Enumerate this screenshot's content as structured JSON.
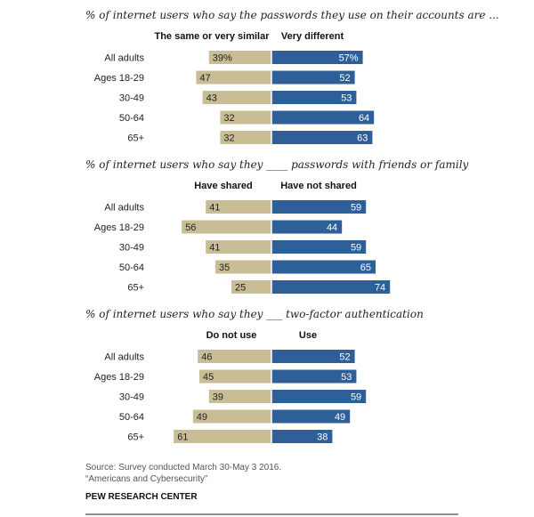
{
  "colors": {
    "left_bar": "#c9bd96",
    "right_bar": "#2f5f98",
    "axis_line": "#ffffff"
  },
  "chart_data": [
    {
      "type": "bar",
      "orientation": "diverging-horizontal",
      "title": "% of internet users who say the passwords they use on their accounts are ...",
      "left_label": "The same or very similar",
      "right_label": "Very different",
      "categories": [
        "All adults",
        "Ages 18-29",
        "30-49",
        "50-64",
        "65+"
      ],
      "series": [
        {
          "name": "The same or very similar",
          "values": [
            39,
            47,
            43,
            32,
            32
          ],
          "labels": [
            "39%",
            "47",
            "43",
            "32",
            "32"
          ]
        },
        {
          "name": "Very different",
          "values": [
            57,
            52,
            53,
            64,
            63
          ],
          "labels": [
            "57%",
            "52",
            "53",
            "64",
            "63"
          ]
        }
      ]
    },
    {
      "type": "bar",
      "orientation": "diverging-horizontal",
      "title": "% of internet users who say they ____ passwords with friends or family",
      "left_label": "Have shared",
      "right_label": "Have not shared",
      "categories": [
        "All adults",
        "Ages 18-29",
        "30-49",
        "50-64",
        "65+"
      ],
      "series": [
        {
          "name": "Have shared",
          "values": [
            41,
            56,
            41,
            35,
            25
          ],
          "labels": [
            "41",
            "56",
            "41",
            "35",
            "25"
          ]
        },
        {
          "name": "Have not shared",
          "values": [
            59,
            44,
            59,
            65,
            74
          ],
          "labels": [
            "59",
            "44",
            "59",
            "65",
            "74"
          ]
        }
      ]
    },
    {
      "type": "bar",
      "orientation": "diverging-horizontal",
      "title": "% of internet users who say they ___ two-factor authentication",
      "left_label": "Do not use",
      "right_label": "Use",
      "categories": [
        "All adults",
        "Ages 18-29",
        "30-49",
        "50-64",
        "65+"
      ],
      "series": [
        {
          "name": "Do not use",
          "values": [
            46,
            45,
            39,
            49,
            61
          ],
          "labels": [
            "46",
            "45",
            "39",
            "49",
            "61"
          ]
        },
        {
          "name": "Use",
          "values": [
            52,
            53,
            59,
            49,
            38
          ],
          "labels": [
            "52",
            "53",
            "59",
            "49",
            "38"
          ]
        }
      ]
    }
  ],
  "footer": {
    "source_line1": "Source: Survey conducted March 30-May 3 2016.",
    "source_line2": "“Americans and Cybersecurity”",
    "org": "PEW RESEARCH CENTER"
  }
}
